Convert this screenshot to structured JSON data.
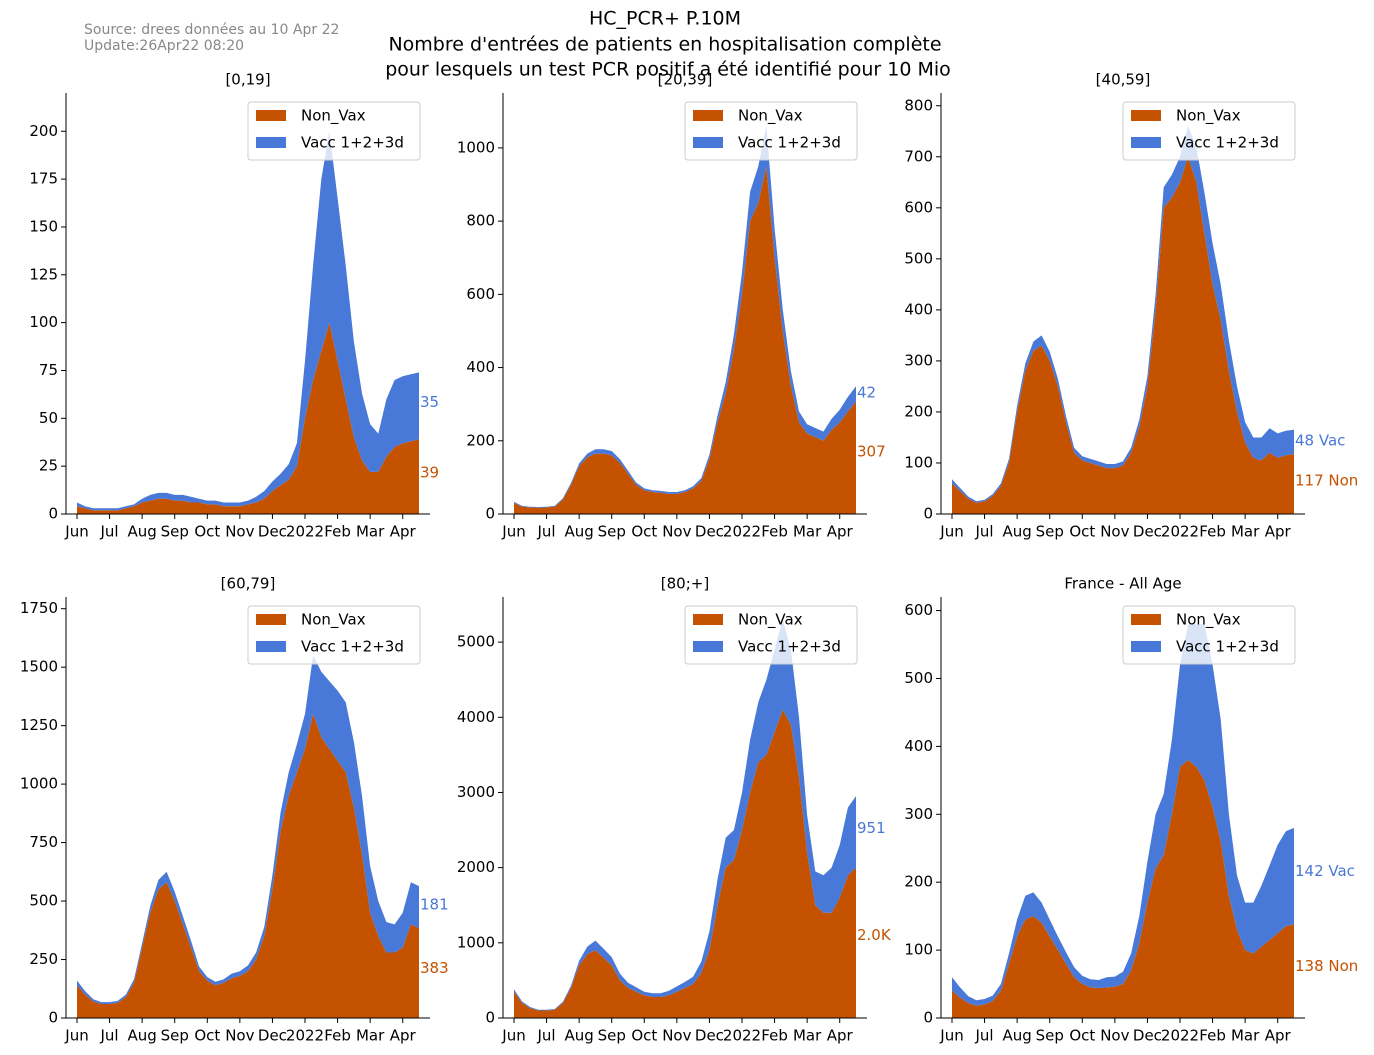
{
  "header": {
    "source": "Source: drees données au 10 Apr 22",
    "update": "Update:26Apr22 08:20",
    "title": [
      "HC_PCR+ P.10M",
      "Nombre d'entrées de patients en hospitalisation complète",
      "pour lesquels un test PCR positif a été identifié pour 10 Mio"
    ]
  },
  "chart_data": [
    {
      "type": "stacked_area",
      "title": "[0,19]",
      "legend": "upper right",
      "ylim": [
        0,
        220
      ],
      "yticks": [
        0,
        25,
        50,
        75,
        100,
        125,
        150,
        175,
        200
      ],
      "categories": [
        "Jun",
        null,
        null,
        null,
        "Jul",
        null,
        null,
        null,
        "Aug",
        null,
        null,
        null,
        "Sep",
        null,
        null,
        null,
        "Oct",
        null,
        null,
        null,
        "Nov",
        null,
        null,
        null,
        "Dec",
        null,
        null,
        null,
        "2022",
        null,
        null,
        null,
        "Feb",
        null,
        null,
        null,
        "Mar",
        null,
        null,
        null,
        "Apr",
        null,
        null
      ],
      "series": [
        {
          "name": "Non_Vax",
          "color": "#c55200",
          "values": [
            4,
            3,
            2,
            2,
            2,
            2,
            3,
            4,
            6,
            7,
            8,
            8,
            7,
            7,
            6,
            6,
            5,
            5,
            4,
            4,
            4,
            5,
            6,
            8,
            12,
            15,
            18,
            25,
            50,
            70,
            85,
            100,
            80,
            60,
            40,
            28,
            22,
            22,
            30,
            35,
            37,
            38,
            39
          ]
        },
        {
          "name": "Vacc 1+2+3d",
          "color": "#4878d8",
          "values": [
            2,
            1,
            1,
            1,
            1,
            1,
            1,
            1,
            2,
            3,
            3,
            3,
            3,
            3,
            3,
            2,
            2,
            2,
            2,
            2,
            2,
            2,
            3,
            4,
            5,
            6,
            8,
            12,
            30,
            60,
            90,
            100,
            85,
            70,
            50,
            35,
            25,
            20,
            30,
            35,
            35,
            35,
            35
          ]
        }
      ]
    },
    {
      "type": "stacked_area",
      "title": "[20,39]",
      "legend": "upper right",
      "ylim": [
        0,
        1150
      ],
      "yticks": [
        0,
        200,
        400,
        600,
        800,
        1000
      ],
      "categories": [
        "Jun",
        null,
        null,
        null,
        "Jul",
        null,
        null,
        null,
        "Aug",
        null,
        null,
        null,
        "Sep",
        null,
        null,
        null,
        "Oct",
        null,
        null,
        null,
        "Nov",
        null,
        null,
        null,
        "Dec",
        null,
        null,
        null,
        "2022",
        null,
        null,
        null,
        "Feb",
        null,
        null,
        null,
        "Mar",
        null,
        null,
        null,
        "Apr",
        null,
        null
      ],
      "series": [
        {
          "name": "Non_Vax",
          "color": "#c55200",
          "values": [
            30,
            20,
            18,
            17,
            18,
            20,
            40,
            80,
            130,
            155,
            165,
            165,
            160,
            140,
            110,
            80,
            65,
            60,
            58,
            55,
            55,
            60,
            70,
            90,
            150,
            250,
            330,
            450,
            600,
            800,
            850,
            950,
            700,
            500,
            350,
            250,
            220,
            210,
            200,
            230,
            250,
            280,
            307
          ]
        },
        {
          "name": "Vacc 1+2+3d",
          "color": "#4878d8",
          "values": [
            3,
            2,
            2,
            2,
            2,
            2,
            3,
            5,
            8,
            10,
            12,
            12,
            12,
            10,
            8,
            6,
            5,
            5,
            5,
            5,
            5,
            5,
            6,
            8,
            12,
            20,
            30,
            40,
            60,
            80,
            100,
            110,
            80,
            60,
            40,
            30,
            25,
            25,
            25,
            30,
            35,
            40,
            42
          ]
        }
      ]
    },
    {
      "type": "stacked_area",
      "title": "[40,59]",
      "legend": "upper right",
      "ylim": [
        0,
        825
      ],
      "yticks": [
        0,
        100,
        200,
        300,
        400,
        500,
        600,
        700,
        800
      ],
      "categories": [
        "Jun",
        null,
        null,
        null,
        "Jul",
        null,
        null,
        null,
        "Aug",
        null,
        null,
        null,
        "Sep",
        null,
        null,
        null,
        "Oct",
        null,
        null,
        null,
        "Nov",
        null,
        null,
        null,
        "Dec",
        null,
        null,
        null,
        "2022",
        null,
        null,
        null,
        "Feb",
        null,
        null,
        null,
        "Mar",
        null,
        null,
        null,
        "Apr",
        null,
        null
      ],
      "series": [
        {
          "name": "Non_Vax",
          "color": "#c55200",
          "values": [
            60,
            45,
            30,
            22,
            25,
            35,
            55,
            100,
            200,
            280,
            320,
            330,
            300,
            250,
            180,
            120,
            105,
            100,
            95,
            90,
            90,
            95,
            120,
            170,
            250,
            400,
            600,
            620,
            650,
            700,
            650,
            550,
            450,
            380,
            280,
            200,
            140,
            110,
            105,
            120,
            110,
            115,
            117
          ],
          "end_label": "117 Non"
        },
        {
          "name": "Vacc 1+2+3d",
          "color": "#4878d8",
          "values": [
            8,
            6,
            4,
            3,
            3,
            4,
            5,
            8,
            12,
            15,
            18,
            20,
            18,
            15,
            12,
            10,
            8,
            8,
            8,
            8,
            8,
            8,
            10,
            15,
            20,
            30,
            40,
            45,
            50,
            60,
            70,
            80,
            80,
            70,
            60,
            50,
            40,
            40,
            45,
            48,
            48,
            48,
            48
          ],
          "end_label": "48 Vac"
        }
      ]
    },
    {
      "type": "stacked_area",
      "title": "[60,79]",
      "legend": "upper right",
      "ylim": [
        0,
        1800
      ],
      "yticks": [
        0,
        250,
        500,
        750,
        1000,
        1250,
        1500,
        1750
      ],
      "categories": [
        "Jun",
        null,
        null,
        null,
        "Jul",
        null,
        null,
        null,
        "Aug",
        null,
        null,
        null,
        "Sep",
        null,
        null,
        null,
        "Oct",
        null,
        null,
        null,
        "Nov",
        null,
        null,
        null,
        "Dec",
        null,
        null,
        null,
        "2022",
        null,
        null,
        null,
        "Feb",
        null,
        null,
        null,
        "Mar",
        null,
        null,
        null,
        "Apr",
        null,
        null
      ],
      "series": [
        {
          "name": "Non_Vax",
          "color": "#c55200",
          "values": [
            140,
            100,
            70,
            60,
            60,
            65,
            90,
            150,
            300,
            450,
            550,
            580,
            500,
            400,
            300,
            200,
            160,
            140,
            150,
            170,
            180,
            200,
            250,
            350,
            550,
            800,
            950,
            1050,
            1150,
            1300,
            1200,
            1150,
            1100,
            1050,
            900,
            700,
            450,
            350,
            280,
            280,
            300,
            400,
            383
          ]
        },
        {
          "name": "Vacc 1+2+3d",
          "color": "#4878d8",
          "values": [
            20,
            15,
            10,
            8,
            8,
            8,
            10,
            15,
            20,
            30,
            40,
            45,
            40,
            35,
            30,
            20,
            15,
            15,
            15,
            20,
            20,
            25,
            30,
            40,
            60,
            80,
            100,
            120,
            150,
            250,
            280,
            290,
            300,
            300,
            280,
            250,
            200,
            150,
            130,
            120,
            150,
            180,
            181
          ]
        }
      ]
    },
    {
      "type": "stacked_area",
      "title": "[80;+]",
      "legend": "upper right",
      "ylim": [
        0,
        5600
      ],
      "yticks": [
        0,
        1000,
        2000,
        3000,
        4000,
        5000
      ],
      "categories": [
        "Jun",
        null,
        null,
        null,
        "Jul",
        null,
        null,
        null,
        "Aug",
        null,
        null,
        null,
        "Sep",
        null,
        null,
        null,
        "Oct",
        null,
        null,
        null,
        "Nov",
        null,
        null,
        null,
        "Dec",
        null,
        null,
        null,
        "2022",
        null,
        null,
        null,
        "Feb",
        null,
        null,
        null,
        "Mar",
        null,
        null,
        null,
        "Apr",
        null,
        null
      ],
      "series": [
        {
          "name": "Non_Vax",
          "color": "#c55200",
          "values": [
            350,
            200,
            130,
            100,
            100,
            110,
            200,
            400,
            700,
            850,
            900,
            800,
            700,
            500,
            400,
            350,
            300,
            280,
            280,
            300,
            350,
            400,
            450,
            600,
            900,
            1500,
            2000,
            2100,
            2500,
            3000,
            3400,
            3500,
            3800,
            4100,
            3900,
            3200,
            2200,
            1500,
            1400,
            1400,
            1600,
            1900,
            2000
          ],
          "end_label": "2.0K"
        },
        {
          "name": "Vacc 1+2+3d",
          "color": "#4878d8",
          "values": [
            30,
            20,
            15,
            10,
            10,
            10,
            15,
            30,
            60,
            100,
            130,
            120,
            110,
            90,
            70,
            60,
            50,
            50,
            50,
            60,
            70,
            80,
            100,
            150,
            250,
            350,
            400,
            400,
            500,
            700,
            800,
            1000,
            1100,
            1200,
            1000,
            800,
            500,
            450,
            500,
            600,
            700,
            900,
            951
          ]
        }
      ]
    },
    {
      "type": "stacked_area",
      "title": "France - All Age",
      "legend": "upper right",
      "ylim": [
        0,
        620
      ],
      "yticks": [
        0,
        100,
        200,
        300,
        400,
        500,
        600
      ],
      "categories": [
        "Jun",
        null,
        null,
        null,
        "Jul",
        null,
        null,
        null,
        "Aug",
        null,
        null,
        null,
        "Sep",
        null,
        null,
        null,
        "Oct",
        null,
        null,
        null,
        "Nov",
        null,
        null,
        null,
        "Dec",
        null,
        null,
        null,
        "2022",
        null,
        null,
        null,
        "Feb",
        null,
        null,
        null,
        "Mar",
        null,
        null,
        null,
        "Apr",
        null,
        null
      ],
      "series": [
        {
          "name": "Non_Vax",
          "color": "#c55200",
          "values": [
            40,
            30,
            22,
            18,
            20,
            25,
            40,
            80,
            120,
            145,
            150,
            140,
            120,
            100,
            80,
            60,
            50,
            45,
            44,
            45,
            46,
            50,
            70,
            110,
            170,
            220,
            240,
            300,
            370,
            380,
            370,
            350,
            310,
            260,
            180,
            130,
            100,
            95,
            105,
            115,
            125,
            135,
            138
          ],
          "end_label": "138 Non"
        },
        {
          "name": "Vacc 1+2+3d",
          "color": "#4878d8",
          "values": [
            20,
            15,
            10,
            8,
            8,
            8,
            10,
            15,
            25,
            35,
            35,
            30,
            25,
            20,
            17,
            15,
            12,
            12,
            12,
            15,
            15,
            18,
            25,
            40,
            60,
            80,
            90,
            110,
            150,
            200,
            210,
            230,
            210,
            180,
            120,
            80,
            70,
            75,
            90,
            110,
            130,
            140,
            142
          ],
          "end_label": "142 Vac"
        }
      ]
    }
  ]
}
